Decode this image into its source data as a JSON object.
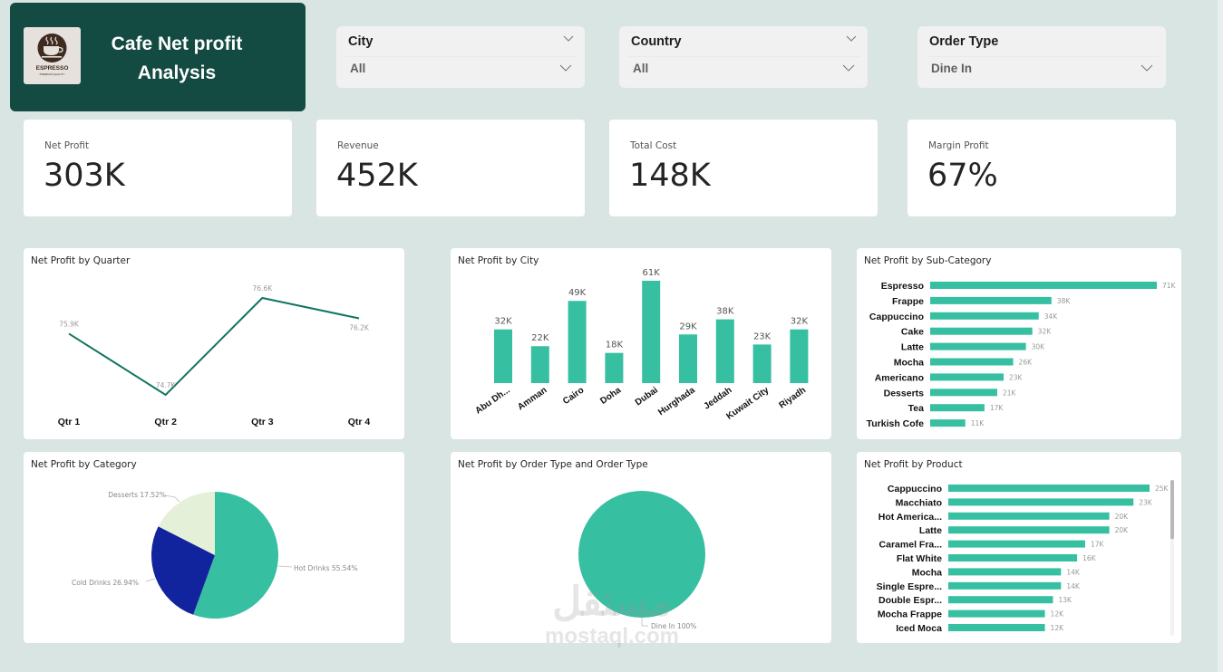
{
  "header": {
    "title_line1": "Cafe Net profit",
    "title_line2": "Analysis",
    "logo": {
      "icon": "coffee-cup-icon",
      "brand": "ESPRESSO",
      "tagline": "PREMIUM QUALITY"
    }
  },
  "slicers": [
    {
      "title": "City",
      "value": "All"
    },
    {
      "title": "Country",
      "value": "All"
    },
    {
      "title": "Order Type",
      "value": "Dine In"
    }
  ],
  "kpis": [
    {
      "label": "Net Profit",
      "value": "303K"
    },
    {
      "label": "Revenue",
      "value": "452K"
    },
    {
      "label": "Total Cost",
      "value": "148K"
    },
    {
      "label": "Margin Profit",
      "value": "67%"
    }
  ],
  "colors": {
    "teal": "#37bfa1",
    "line": "#117561",
    "navy": "#12239e",
    "pale": "#e4f1d8",
    "header": "#134a42"
  },
  "chart_data": [
    {
      "id": "quarter",
      "type": "line",
      "title": "Net Profit by Quarter",
      "categories": [
        "Qtr 1",
        "Qtr 2",
        "Qtr 3",
        "Qtr 4"
      ],
      "values": [
        75.9,
        74.7,
        76.6,
        76.2
      ],
      "labels": [
        "75.9K",
        "74.7K",
        "76.6K",
        "76.2K"
      ],
      "unit": "K",
      "ylim": [
        74.7,
        76.6
      ],
      "grid": false
    },
    {
      "id": "city",
      "type": "bar",
      "title": "Net Profit by City",
      "categories": [
        "Abu Dh...",
        "Amman",
        "Cairo",
        "Doha",
        "Dubai",
        "Hurghada",
        "Jeddah",
        "Kuwait City",
        "Riyadh"
      ],
      "values": [
        32,
        22,
        49,
        18,
        61,
        29,
        38,
        23,
        32
      ],
      "labels": [
        "32K",
        "22K",
        "49K",
        "18K",
        "61K",
        "29K",
        "38K",
        "23K",
        "32K"
      ],
      "unit": "K",
      "ylim": [
        0,
        61
      ],
      "grid": false
    },
    {
      "id": "subcategory",
      "type": "bar",
      "orientation": "horizontal",
      "title": "Net Profit by Sub-Category",
      "categories": [
        "Espresso",
        "Frappe",
        "Cappuccino",
        "Cake",
        "Latte",
        "Mocha",
        "Americano",
        "Desserts",
        "Tea",
        "Turkish Cofe"
      ],
      "values": [
        71,
        38,
        34,
        32,
        30,
        26,
        23,
        21,
        17,
        11
      ],
      "labels": [
        "71K",
        "38K",
        "34K",
        "32K",
        "30K",
        "26K",
        "23K",
        "21K",
        "17K",
        "11K"
      ],
      "unit": "K",
      "xlim": [
        0,
        71
      ]
    },
    {
      "id": "category",
      "type": "pie",
      "title": "Net Profit by Category",
      "categories": [
        "Hot Drinks",
        "Cold Drinks",
        "Desserts"
      ],
      "values": [
        55.54,
        26.94,
        17.52
      ],
      "labels": [
        "Hot Drinks 55.54%",
        "Cold Drinks 26.94%",
        "Desserts 17.52%"
      ],
      "unit": "%"
    },
    {
      "id": "ordertype",
      "type": "pie",
      "title": "Net Profit by Order Type and Order Type",
      "categories": [
        "Dine In"
      ],
      "values": [
        100
      ],
      "labels": [
        "Dine In 100%"
      ],
      "unit": "%"
    },
    {
      "id": "product",
      "type": "bar",
      "orientation": "horizontal",
      "title": "Net Profit by Product",
      "categories": [
        "Cappuccino",
        "Macchiato",
        "Hot America...",
        "Latte",
        "Caramel Fra...",
        "Flat White",
        "Mocha",
        "Single Espre...",
        "Double Espr...",
        "Mocha Frappe",
        "Iced Moca"
      ],
      "values": [
        25,
        23,
        20,
        20,
        17,
        16,
        14,
        14,
        13,
        12,
        12
      ],
      "labels": [
        "25K",
        "23K",
        "20K",
        "20K",
        "17K",
        "16K",
        "14K",
        "14K",
        "13K",
        "12K",
        "12K"
      ],
      "unit": "K",
      "xlim": [
        0,
        25
      ],
      "scrollbar": {
        "visible_fraction": 0.38,
        "position": 0
      }
    }
  ],
  "watermark": {
    "arabic": "مستقل",
    "latin": "mostaql.com"
  }
}
